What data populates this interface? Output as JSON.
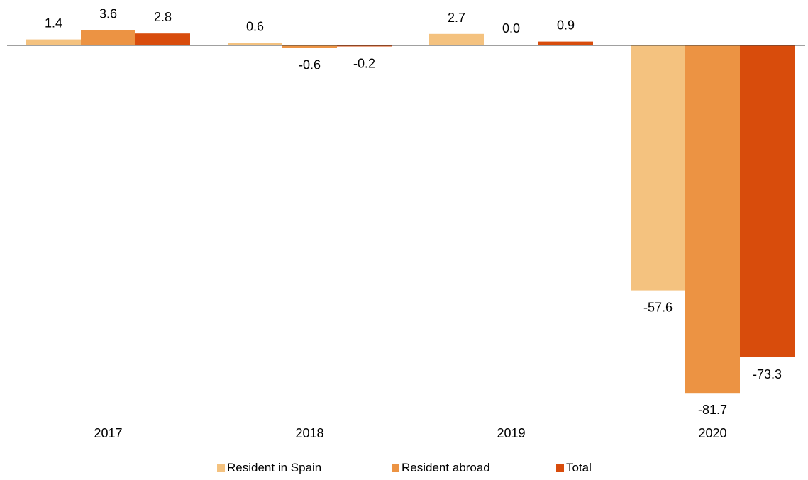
{
  "chart_data": {
    "type": "bar",
    "categories": [
      "2017",
      "2018",
      "2019",
      "2020"
    ],
    "series": [
      {
        "name": "Resident in Spain",
        "color": "#F4C27F",
        "values": [
          1.4,
          0.6,
          2.7,
          -57.6
        ],
        "labels": [
          "1.4",
          "0.6",
          "2.7",
          "-57.6"
        ]
      },
      {
        "name": "Resident abroad",
        "color": "#EC9343",
        "values": [
          3.6,
          -0.6,
          0.0,
          -81.7
        ],
        "labels": [
          "3.6",
          "-0.6",
          "0.0",
          "-81.7"
        ]
      },
      {
        "name": "Total",
        "color": "#D84C0C",
        "values": [
          2.8,
          -0.2,
          0.9,
          -73.3
        ],
        "labels": [
          "2.8",
          "-0.2",
          "0.9",
          "-73.3"
        ]
      }
    ],
    "title": "",
    "xlabel": "",
    "ylabel": "",
    "ylim": [
      -82,
      4
    ],
    "grid": false,
    "legend_position": "bottom-center",
    "axis_color": "#404040"
  }
}
